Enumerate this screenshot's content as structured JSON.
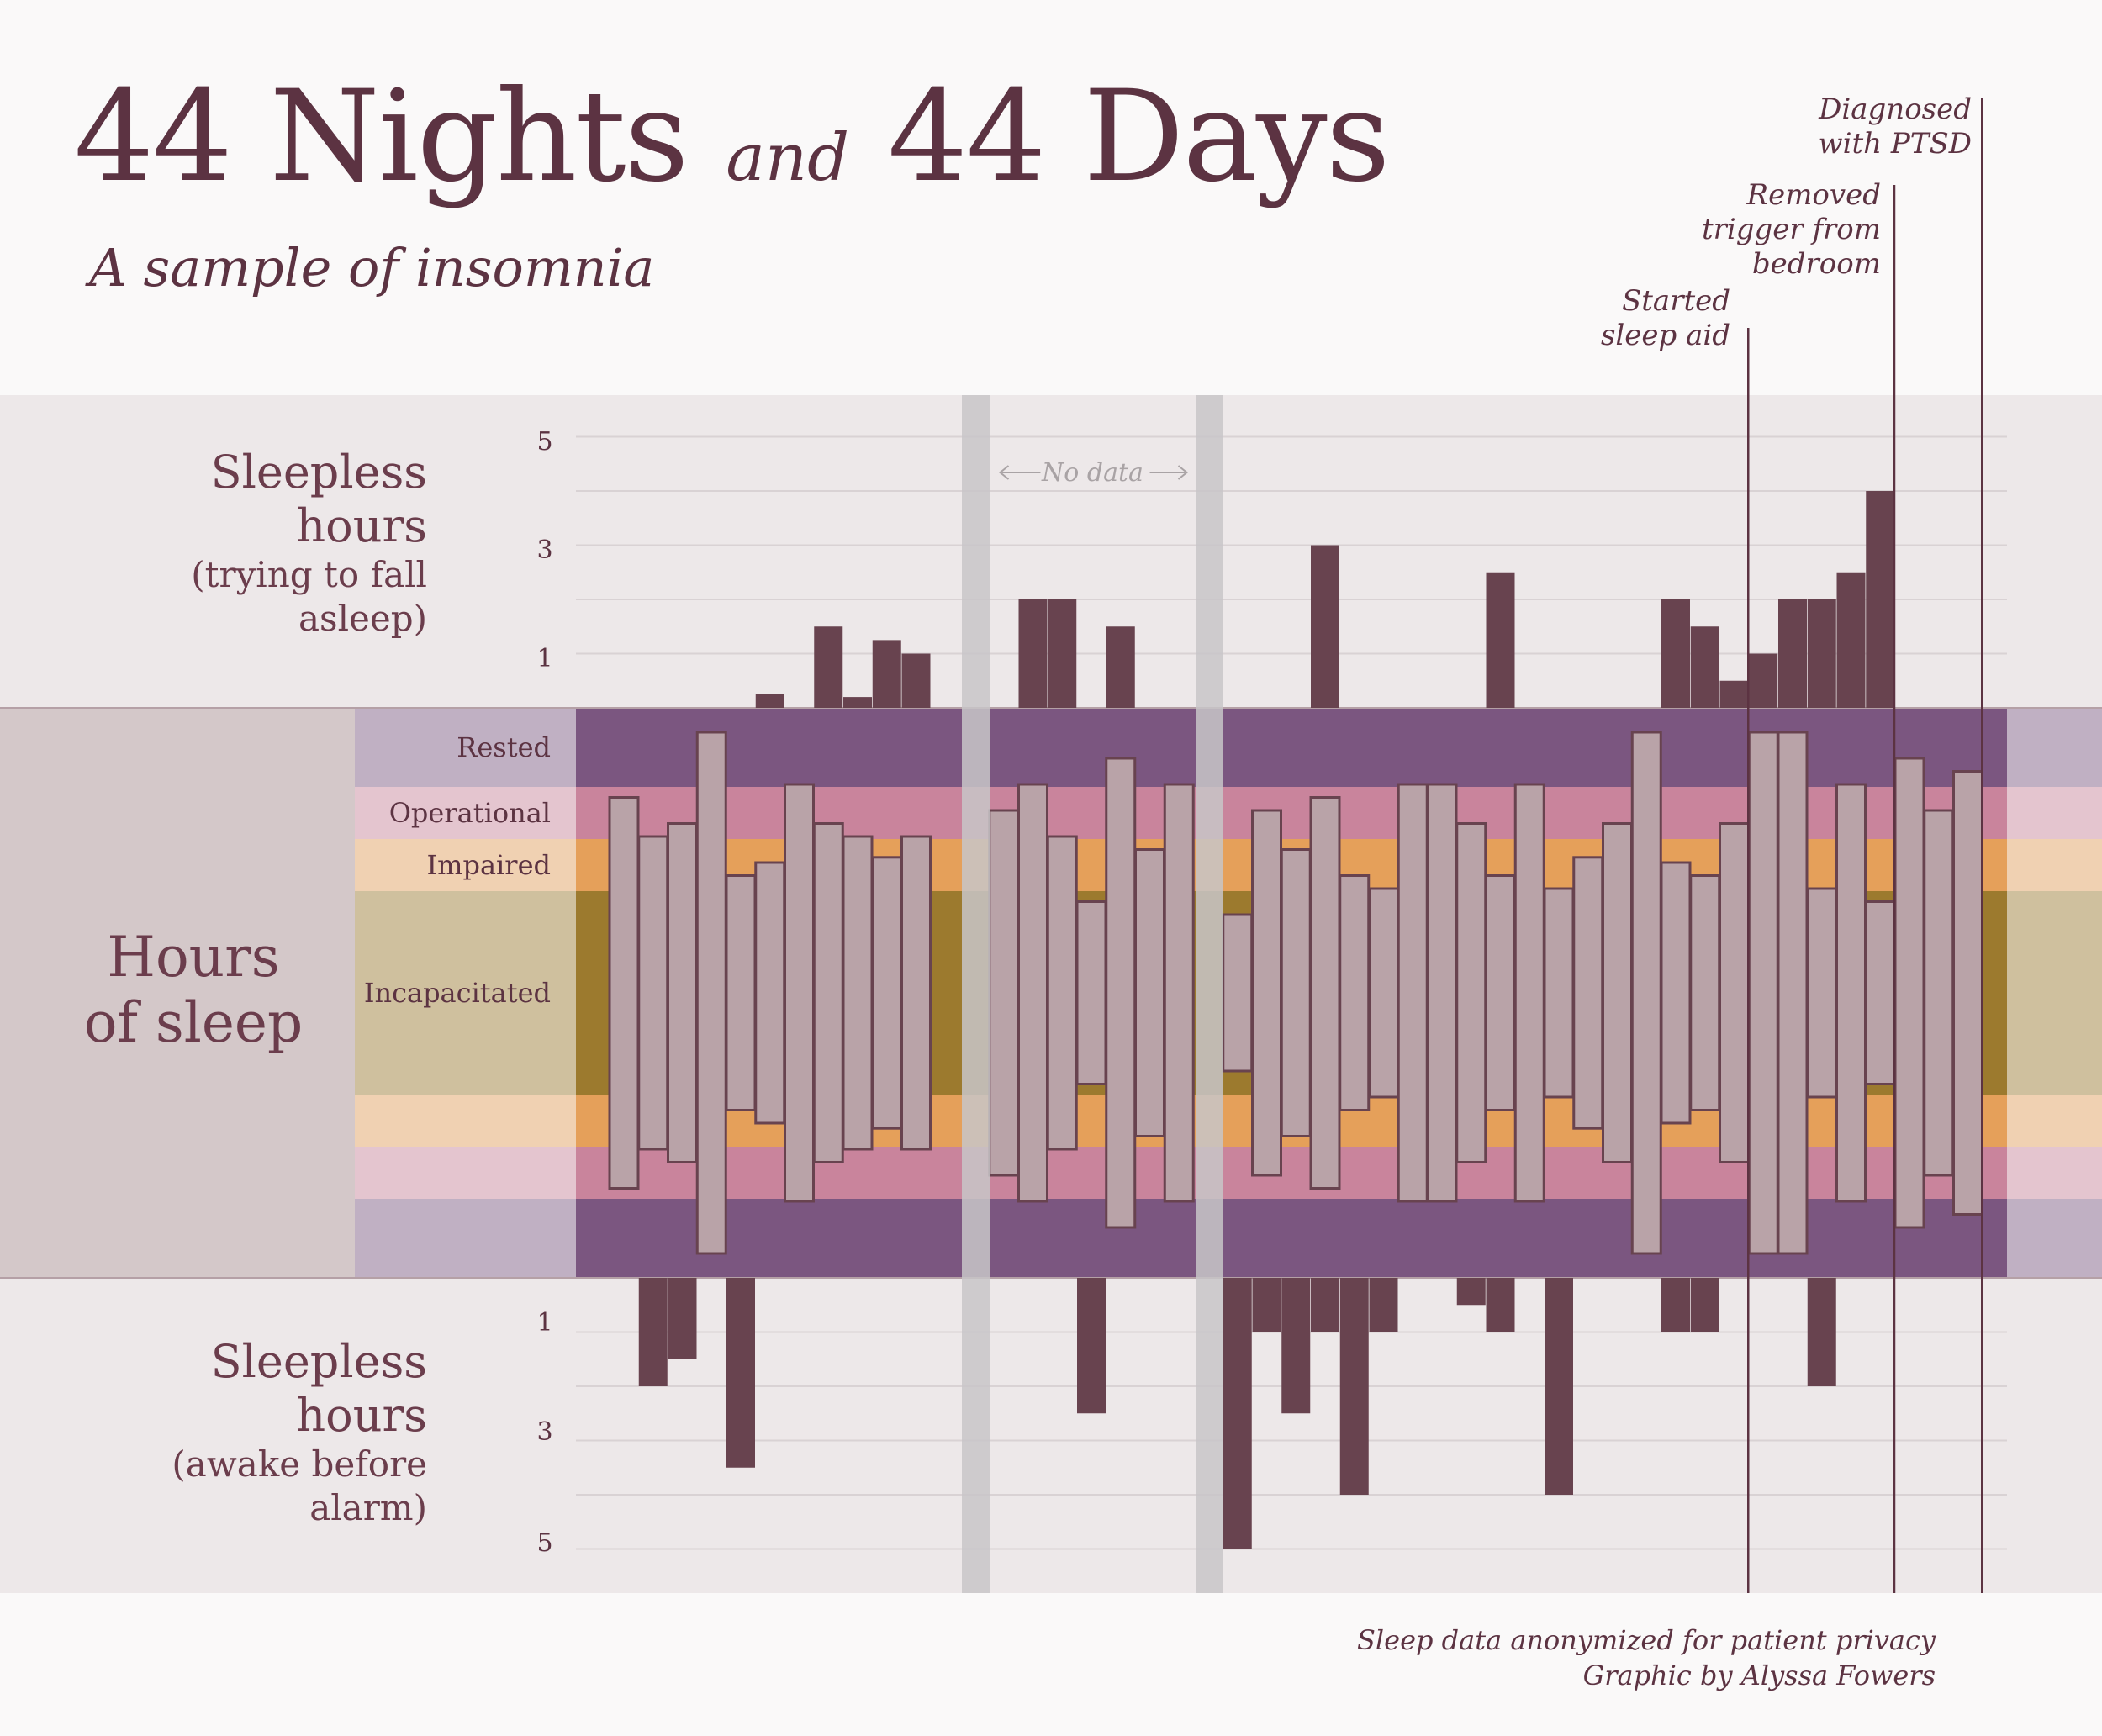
{
  "header": {
    "title_num1": "44 Nights",
    "title_and": "and",
    "title_num2": "44 Days",
    "subtitle": "A sample of insomnia"
  },
  "labels": {
    "top_main": [
      "Sleepless",
      "hours"
    ],
    "top_sub": [
      "(trying to fall",
      "asleep)"
    ],
    "middle": [
      "Hours",
      "of sleep"
    ],
    "bottom_main": [
      "Sleepless",
      "hours"
    ],
    "bottom_sub": [
      "(awake before",
      "alarm)"
    ],
    "no_data": "No data"
  },
  "bands": [
    "Rested",
    "Operational",
    "Impaired",
    "Incapacitated"
  ],
  "annotations": [
    {
      "lines": [
        "Started",
        "sleep aid"
      ],
      "after_night": 40
    },
    {
      "lines": [
        "Removed",
        "trigger from",
        "bedroom"
      ],
      "after_night": 45
    },
    {
      "lines": [
        "Diagnosed",
        "with PTSD"
      ],
      "after_night": 48
    }
  ],
  "footer": {
    "line1": "Sleep data anonymized for patient privacy",
    "line2": "Graphic by Alyssa Fowers"
  },
  "colors": {
    "rested": "#7b5680",
    "operational": "#c9849c",
    "impaired": "#e5a05a",
    "incapacitated": "#9c7a2e",
    "bar_dark": "#68434f",
    "bar_light": "#b9a3a8",
    "no_data": "#c8c6c8"
  },
  "chart_data": {
    "type": "bar",
    "x": [
      1,
      2,
      3,
      4,
      5,
      6,
      7,
      8,
      9,
      10,
      11,
      12,
      13,
      14,
      15,
      16,
      17,
      18,
      19,
      20,
      21,
      22,
      23,
      24,
      25,
      26,
      27,
      28,
      29,
      30,
      31,
      32,
      33,
      34,
      35,
      36,
      37,
      38,
      39,
      40,
      41,
      42,
      43,
      44,
      45,
      46,
      47,
      48,
      49
    ],
    "no_data_nights": [
      13,
      21
    ],
    "series": [
      {
        "name": "Sleepless hours (trying to fall asleep)",
        "values": [
          0,
          0,
          0,
          0,
          0,
          0.25,
          0,
          1.5,
          0.2,
          1.25,
          1,
          0,
          0,
          0,
          2,
          2,
          0,
          1.5,
          0,
          0,
          0,
          0,
          0,
          0,
          3,
          0,
          0,
          0,
          0,
          0,
          2.5,
          0,
          0,
          0,
          0,
          0,
          2,
          1.5,
          0.5,
          1,
          2,
          2,
          2.5,
          4,
          0,
          0,
          0,
          0,
          0
        ]
      },
      {
        "name": "Hours of sleep",
        "values": [
          7.5,
          6,
          6.5,
          10,
          4.5,
          5,
          8,
          6.5,
          6,
          5.2,
          6,
          0,
          0,
          7,
          8,
          6,
          3.5,
          9,
          5.5,
          8,
          0,
          3,
          7,
          5.5,
          7.5,
          4.5,
          4,
          8,
          8,
          6.5,
          4.5,
          8,
          4,
          5.2,
          6.5,
          10,
          5,
          4.5,
          6.5,
          10,
          10,
          4,
          8,
          3.5,
          9,
          7,
          8.5,
          0,
          0
        ]
      },
      {
        "name": "Sleepless hours (awake before alarm)",
        "values": [
          0,
          2,
          1.5,
          0,
          3.5,
          0,
          0,
          0,
          0,
          0,
          0,
          0,
          0,
          0,
          0,
          0,
          2.5,
          0,
          0,
          0,
          0,
          5,
          1,
          2.5,
          1,
          4,
          1,
          0,
          0,
          0.5,
          1,
          0,
          4,
          0,
          0,
          0,
          1,
          1,
          0,
          0,
          0,
          2,
          0,
          0,
          0,
          0,
          0,
          0,
          0
        ]
      }
    ],
    "top_ticks": [
      "5",
      "3",
      "1"
    ],
    "bottom_ticks": [
      "1",
      "3",
      "5"
    ]
  }
}
